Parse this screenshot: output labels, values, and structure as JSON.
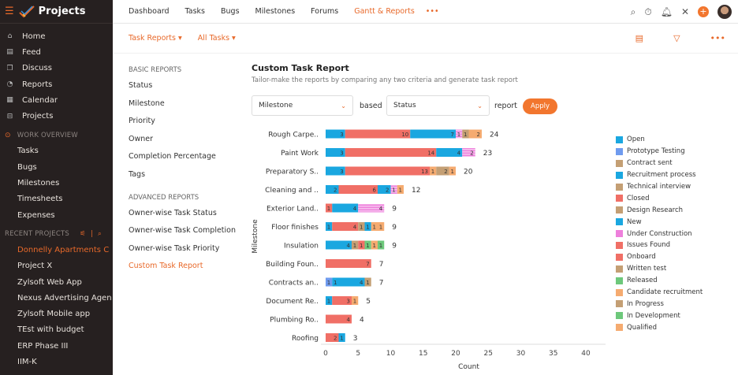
{
  "sidebar": {
    "app_title": "Projects",
    "nav": [
      {
        "label": "Home",
        "icon": "home-icon"
      },
      {
        "label": "Feed",
        "icon": "feed-icon"
      },
      {
        "label": "Discuss",
        "icon": "discuss-icon"
      },
      {
        "label": "Reports",
        "icon": "reports-icon"
      },
      {
        "label": "Calendar",
        "icon": "calendar-icon"
      },
      {
        "label": "Projects",
        "icon": "briefcase-icon"
      }
    ],
    "work_overview": {
      "title": "WORK OVERVIEW",
      "items": [
        "Tasks",
        "Bugs",
        "Milestones",
        "Timesheets",
        "Expenses"
      ]
    },
    "recent_projects": {
      "title": "RECENT PROJECTS",
      "items": [
        "Donnelly Apartments C",
        "Project X",
        "Zylsoft Web App",
        "Nexus Advertising Agen",
        "Zylsoft Mobile app",
        "TEst with budget",
        "ERP Phase III",
        "IIM-K"
      ],
      "active": 0
    }
  },
  "topbar": {
    "tabs": [
      "Dashboard",
      "Tasks",
      "Bugs",
      "Milestones",
      "Forums",
      "Gantt & Reports",
      "•••"
    ],
    "active": "Gantt & Reports"
  },
  "subbar": {
    "task_reports": "Task Reports ▾",
    "all_tasks": "All Tasks ▾"
  },
  "report_nav": {
    "basic_title": "BASIC REPORTS",
    "basic": [
      "Status",
      "Milestone",
      "Priority",
      "Owner",
      "Completion Percentage",
      "Tags"
    ],
    "advanced_title": "ADVANCED REPORTS",
    "advanced": [
      "Owner-wise Task Status",
      "Owner-wise Task Completion",
      "Owner-wise Task Priority",
      "Custom Task Report"
    ],
    "active": "Custom Task Report"
  },
  "main": {
    "title": "Custom Task Report",
    "description": "Tailor-make the reports by comparing any two criteria and generate task report",
    "criteria1": "Milestone",
    "based_label": "based",
    "criteria2": "Status",
    "report_label": "report",
    "apply": "Apply"
  },
  "chart_data": {
    "type": "bar",
    "orientation": "horizontal",
    "stacked": true,
    "xlabel": "Count",
    "ylabel": "Milestone",
    "xlim": [
      0,
      40
    ],
    "xticks": [
      "0",
      "5",
      "10",
      "15",
      "20",
      "25",
      "30",
      "35",
      "40"
    ],
    "categories": [
      "Rough Carpe..",
      "Paint Work",
      "Preparatory S..",
      "Cleaning and ..",
      "Exterior Land..",
      "Floor finishes",
      "Insulation",
      "Building Foun..",
      "Contracts an..",
      "Document Re..",
      "Plumbing Ro..",
      "Roofing"
    ],
    "totals": [
      24,
      23,
      20,
      12,
      9,
      9,
      9,
      7,
      7,
      5,
      4,
      3
    ],
    "segments": [
      [
        [
          "Open",
          3
        ],
        [
          "Closed",
          10
        ],
        [
          "New",
          7
        ],
        [
          "Under Construction",
          1
        ],
        [
          "In Progress",
          1
        ],
        [
          "Qualified",
          2
        ]
      ],
      [
        [
          "Open",
          3
        ],
        [
          "Closed",
          14
        ],
        [
          "New",
          4
        ],
        [
          "Under Construction",
          2
        ]
      ],
      [
        [
          "Open",
          3
        ],
        [
          "Closed",
          13
        ],
        [
          "Qualified",
          1
        ],
        [
          "In Progress",
          2
        ],
        [
          "Qualified",
          1
        ]
      ],
      [
        [
          "Open",
          2
        ],
        [
          "Closed",
          6
        ],
        [
          "New",
          2
        ],
        [
          "Under Construction",
          1
        ],
        [
          "Qualified",
          1
        ]
      ],
      [
        [
          "Closed",
          1
        ],
        [
          "New",
          4
        ],
        [
          "Under Construction",
          4
        ]
      ],
      [
        [
          "Open",
          1
        ],
        [
          "Closed",
          4
        ],
        [
          "In Progress",
          1
        ],
        [
          "New",
          1
        ],
        [
          "Qualified",
          1
        ],
        [
          "Candidate recruitment",
          1
        ]
      ],
      [
        [
          "Open",
          4
        ],
        [
          "In Progress",
          1
        ],
        [
          "Closed",
          1
        ],
        [
          "Released",
          1
        ],
        [
          "Qualified",
          1
        ],
        [
          "In Development",
          1
        ]
      ],
      [
        [
          "Closed",
          7
        ]
      ],
      [
        [
          "Prototype Testing",
          1
        ],
        [
          "Open",
          1
        ],
        [
          "New",
          4
        ],
        [
          "In Progress",
          1
        ]
      ],
      [
        [
          "Open",
          1
        ],
        [
          "Closed",
          3
        ],
        [
          "Qualified",
          1
        ]
      ],
      [
        [
          "Closed",
          4
        ]
      ],
      [
        [
          "Closed",
          2
        ],
        [
          "Open",
          1
        ]
      ]
    ],
    "legend_position": "right",
    "legend": [
      {
        "name": "Open",
        "color": "#1aa7e0"
      },
      {
        "name": "Prototype Testing",
        "color": "#6f9bef"
      },
      {
        "name": "Contract sent",
        "color": "#c49f74"
      },
      {
        "name": "Recruitment process",
        "color": "#1aa7e0"
      },
      {
        "name": "Technical interview",
        "color": "#c49f74"
      },
      {
        "name": "Closed",
        "color": "#f06f66"
      },
      {
        "name": "Design Research",
        "color": "#c49f74"
      },
      {
        "name": "New",
        "color": "#1aa7e0"
      },
      {
        "name": "Under Construction",
        "color": "#ee80dc"
      },
      {
        "name": "Issues Found",
        "color": "#f06f66"
      },
      {
        "name": "Onboard",
        "color": "#f06f66"
      },
      {
        "name": "Written test",
        "color": "#c49f74"
      },
      {
        "name": "Released",
        "color": "#6dc87b"
      },
      {
        "name": "Candidate recruitment",
        "color": "#f5ab70"
      },
      {
        "name": "In Progress",
        "color": "#c49f74"
      },
      {
        "name": "In Development",
        "color": "#6dc87b"
      },
      {
        "name": "Qualified",
        "color": "#f5ab70"
      }
    ]
  }
}
